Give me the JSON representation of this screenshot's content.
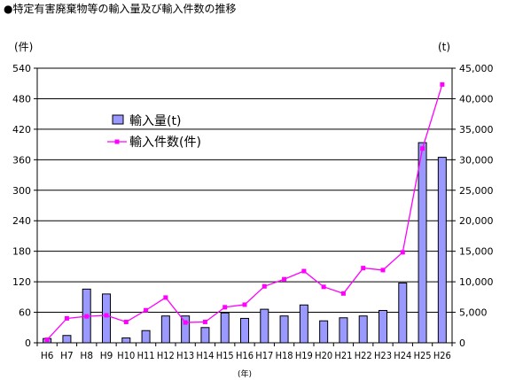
{
  "chart_data": {
    "type": "bar+line",
    "title": "●特定有害廃棄物等の輸入量及び輸入件数の推移",
    "categories": [
      "H6",
      "H7",
      "H8",
      "H9",
      "H10",
      "H11",
      "H12",
      "H13",
      "H14",
      "H15",
      "H16",
      "H17",
      "H18",
      "H19",
      "H20",
      "H21",
      "H22",
      "H23",
      "H24",
      "H25",
      "H26"
    ],
    "left_axis": {
      "unit_label": "(件)",
      "min": 0,
      "max": 540,
      "ticks": [
        "0",
        "60",
        "120",
        "180",
        "240",
        "300",
        "360",
        "420",
        "480",
        "540"
      ]
    },
    "right_axis": {
      "unit_label": "(t)",
      "min": 0,
      "max": 45000,
      "ticks": [
        "0",
        "5,000",
        "10,000",
        "15,000",
        "20,000",
        "25,000",
        "30,000",
        "35,000",
        "40,000",
        "45,000"
      ]
    },
    "xlabel": "(年)",
    "grid": true,
    "legend_position": "upper-left inside plot",
    "series": [
      {
        "name": "輸入量(t)",
        "type": "bar",
        "axis": "right",
        "color": "#9999ff",
        "values": [
          700,
          1200,
          8800,
          8000,
          800,
          2000,
          4400,
          4400,
          2500,
          4900,
          4000,
          5500,
          4400,
          6200,
          3600,
          4100,
          4400,
          5300,
          9800,
          32800,
          30400
        ]
      },
      {
        "name": "輸入件数(件)",
        "type": "line",
        "axis": "left",
        "color": "#ff00ff",
        "values": [
          6,
          48,
          52,
          54,
          41,
          64,
          89,
          40,
          41,
          70,
          75,
          111,
          125,
          141,
          110,
          97,
          147,
          143,
          178,
          382,
          508
        ]
      }
    ]
  }
}
